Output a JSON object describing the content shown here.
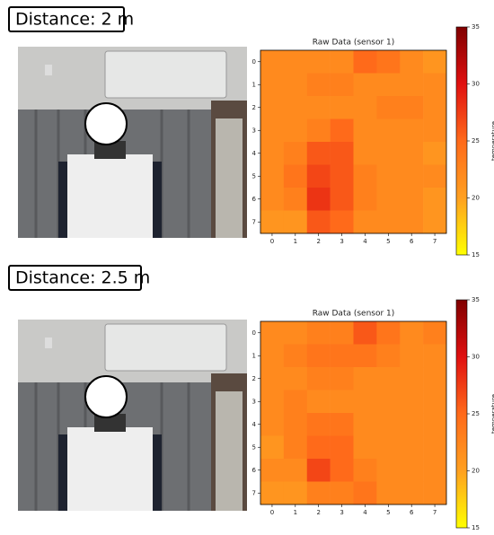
{
  "chart_data": [
    {
      "type": "heatmap",
      "label": "Distance: 2 m",
      "title": "Raw Data (sensor 1)",
      "xticks": [
        0,
        1,
        2,
        3,
        4,
        5,
        6,
        7
      ],
      "yticks": [
        0,
        1,
        2,
        3,
        4,
        5,
        6,
        7
      ],
      "values": [
        [
          22,
          22,
          22,
          22,
          25,
          24,
          22,
          21
        ],
        [
          22,
          22,
          23,
          23,
          22,
          22,
          22,
          22
        ],
        [
          22,
          22,
          22,
          22,
          22,
          23,
          23,
          22
        ],
        [
          22,
          22,
          23,
          25,
          22,
          22,
          22,
          22
        ],
        [
          22,
          23,
          26,
          26,
          22,
          22,
          22,
          21
        ],
        [
          22,
          24,
          27,
          26,
          23,
          22,
          22,
          22
        ],
        [
          22,
          23,
          28,
          26,
          23,
          22,
          22,
          21
        ],
        [
          21,
          21,
          26,
          25,
          22,
          22,
          22,
          21
        ]
      ],
      "clim": [
        15,
        35
      ],
      "cticks": [
        15,
        20,
        25,
        30,
        35
      ],
      "clabel": "temperature"
    },
    {
      "type": "heatmap",
      "label": "Distance: 2.5 m",
      "title": "Raw Data (sensor 1)",
      "xticks": [
        0,
        1,
        2,
        3,
        4,
        5,
        6,
        7
      ],
      "yticks": [
        0,
        1,
        2,
        3,
        4,
        5,
        6,
        7
      ],
      "values": [
        [
          22,
          22,
          23,
          23,
          26,
          24,
          22,
          23
        ],
        [
          22,
          23,
          24,
          24,
          24,
          23,
          22,
          22
        ],
        [
          22,
          22,
          23,
          23,
          22,
          22,
          22,
          22
        ],
        [
          22,
          23,
          22,
          22,
          22,
          22,
          22,
          22
        ],
        [
          22,
          23,
          24,
          24,
          22,
          22,
          22,
          22
        ],
        [
          21,
          23,
          25,
          25,
          22,
          22,
          22,
          22
        ],
        [
          22,
          22,
          27,
          25,
          23,
          22,
          22,
          22
        ],
        [
          21,
          21,
          23,
          23,
          24,
          22,
          22,
          22
        ]
      ],
      "clim": [
        15,
        35
      ],
      "cticks": [
        15,
        20,
        25,
        30,
        35
      ],
      "clabel": "temperature"
    }
  ]
}
